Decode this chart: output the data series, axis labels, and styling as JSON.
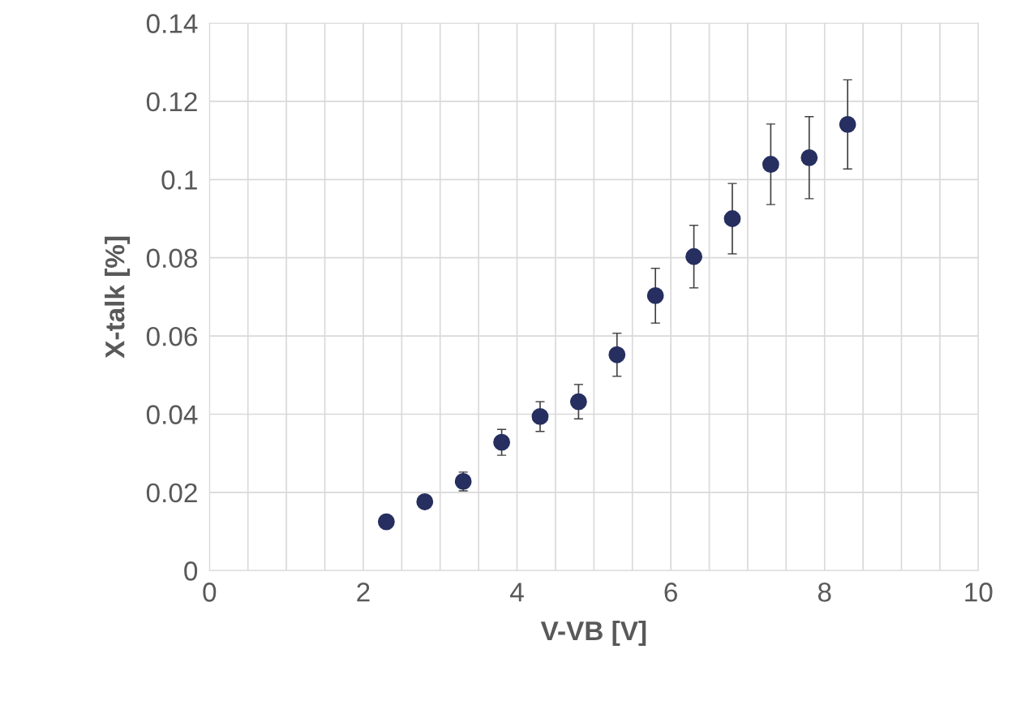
{
  "chart_data": {
    "type": "scatter",
    "xlabel": "V-VB [V]",
    "ylabel": "X-talk [%]",
    "x": [
      2.3,
      2.8,
      3.3,
      3.8,
      4.3,
      4.8,
      5.3,
      5.8,
      6.3,
      6.8,
      7.3,
      7.8,
      8.3
    ],
    "series": [
      {
        "color": "#262f5f",
        "values": [
          0.0125,
          0.0176,
          0.0228,
          0.0328,
          0.0394,
          0.0432,
          0.0552,
          0.0703,
          0.0803,
          0.09,
          0.1039,
          0.1056,
          0.1141
        ],
        "errors": [
          null,
          null,
          0.0024,
          0.0033,
          0.0038,
          0.0044,
          0.0055,
          0.007,
          0.008,
          0.009,
          0.0103,
          0.0105,
          0.0114
        ]
      }
    ],
    "xlim": [
      0,
      10
    ],
    "ylim": [
      0,
      0.14
    ],
    "xticks": [
      0,
      {
        "value": 0.5,
        "label": null
      },
      {
        "value": 1,
        "label": null
      },
      {
        "value": 1.5,
        "label": null
      },
      2,
      {
        "value": 2.5,
        "label": null
      },
      {
        "value": 3,
        "label": null
      },
      {
        "value": 3.5,
        "label": null
      },
      4,
      {
        "value": 4.5,
        "label": null
      },
      {
        "value": 5,
        "label": null
      },
      {
        "value": 5.5,
        "label": null
      },
      6,
      {
        "value": 6.5,
        "label": null
      },
      {
        "value": 7,
        "label": null
      },
      {
        "value": 7.5,
        "label": null
      },
      8,
      {
        "value": 8.5,
        "label": null
      },
      {
        "value": 9,
        "label": null
      },
      {
        "value": 9.5,
        "label": null
      },
      10
    ],
    "yticks": [
      0,
      0.02,
      0.04,
      0.06,
      0.08,
      0.1,
      0.12,
      0.14
    ],
    "grid": true,
    "marker": "circle"
  }
}
